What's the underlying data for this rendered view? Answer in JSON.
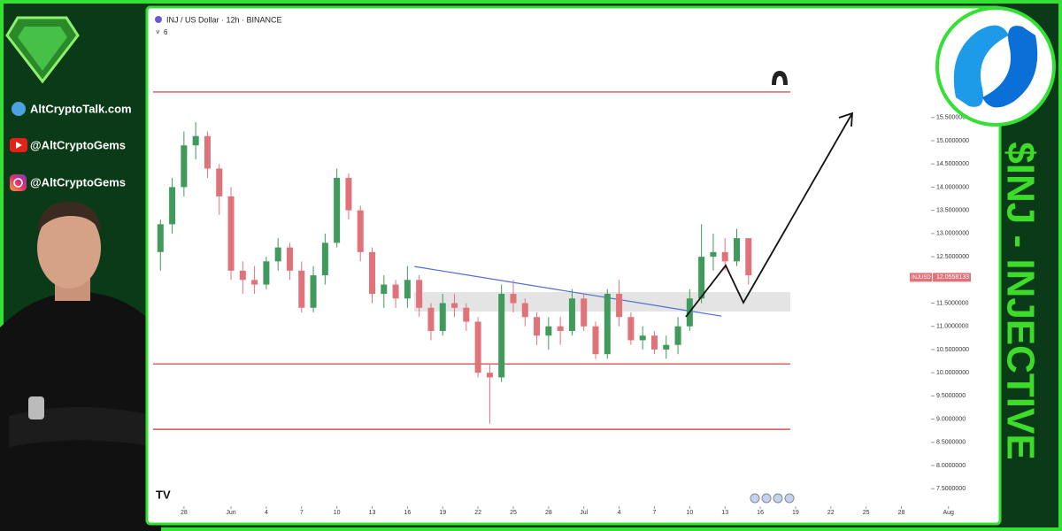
{
  "branding": {
    "website": "AltCryptoTalk.com",
    "youtube": "@AltCryptoGems",
    "instagram": "@AltCryptoGems",
    "headline": "$INJ - INJECTIVE"
  },
  "chart_data": {
    "type": "candlestick",
    "title": "INJ / US Dollar · 12h · BINANCE",
    "indicator_count": "6",
    "up_color": "#3f9a5c",
    "down_color": "#e0737a",
    "x": [
      -2,
      -1,
      0,
      1,
      2,
      3,
      4,
      5,
      6,
      7,
      8,
      9,
      10,
      11,
      12,
      13,
      14,
      15,
      16,
      17,
      18,
      19,
      20,
      21,
      22,
      23,
      24,
      25,
      26,
      27,
      28,
      29,
      30,
      31,
      32,
      33,
      34,
      35,
      36,
      37,
      38,
      39,
      40,
      41,
      42,
      43,
      44,
      45,
      46,
      47,
      48
    ],
    "open": [
      12.6,
      13.2,
      14.0,
      14.9,
      15.1,
      14.4,
      13.8,
      12.2,
      12.0,
      11.9,
      12.4,
      12.7,
      12.2,
      11.4,
      12.1,
      12.8,
      14.2,
      13.5,
      12.6,
      11.7,
      11.9,
      11.6,
      12.0,
      11.4,
      10.9,
      11.5,
      11.4,
      11.1,
      10.0,
      9.9,
      11.7,
      11.5,
      11.2,
      10.8,
      11.0,
      10.9,
      11.6,
      11.0,
      10.4,
      11.7,
      11.2,
      10.7,
      10.8,
      10.5,
      10.6,
      11.0,
      11.6,
      12.5,
      12.6,
      12.4,
      12.9
    ],
    "high": [
      13.3,
      14.2,
      15.2,
      15.4,
      15.2,
      14.5,
      14.0,
      12.4,
      12.3,
      12.5,
      12.9,
      12.8,
      12.4,
      12.3,
      13.0,
      14.4,
      14.3,
      13.6,
      12.7,
      12.1,
      12.0,
      12.3,
      12.1,
      11.5,
      11.7,
      11.7,
      11.5,
      11.2,
      10.2,
      11.9,
      12.0,
      11.6,
      11.3,
      11.2,
      11.2,
      11.8,
      11.7,
      11.1,
      11.8,
      12.0,
      11.3,
      11.0,
      10.9,
      10.8,
      11.2,
      11.8,
      13.2,
      13.0,
      12.9,
      13.1,
      12.9
    ],
    "low": [
      12.2,
      13.0,
      13.8,
      14.6,
      14.2,
      13.4,
      12.0,
      11.7,
      11.7,
      11.8,
      12.2,
      12.0,
      11.3,
      11.3,
      11.9,
      12.7,
      13.3,
      12.4,
      11.5,
      11.4,
      11.4,
      11.4,
      11.2,
      10.7,
      10.8,
      11.2,
      10.9,
      9.9,
      8.9,
      9.8,
      11.3,
      11.0,
      10.6,
      10.5,
      10.6,
      10.8,
      10.9,
      10.3,
      10.3,
      11.0,
      10.6,
      10.5,
      10.4,
      10.3,
      10.4,
      10.9,
      11.5,
      12.2,
      12.2,
      12.3,
      11.9
    ],
    "close": [
      13.2,
      14.0,
      14.9,
      15.1,
      14.4,
      13.8,
      12.2,
      12.0,
      11.9,
      12.4,
      12.7,
      12.2,
      11.4,
      12.1,
      12.8,
      14.2,
      13.5,
      12.6,
      11.7,
      11.9,
      11.6,
      12.0,
      11.4,
      10.9,
      11.5,
      11.4,
      11.1,
      10.0,
      9.9,
      11.7,
      11.5,
      11.2,
      10.8,
      11.0,
      10.9,
      11.6,
      11.0,
      10.4,
      11.7,
      11.2,
      10.7,
      10.8,
      10.5,
      10.6,
      11.0,
      11.6,
      12.5,
      12.6,
      12.4,
      12.9,
      12.1
    ],
    "xlim": [
      -3,
      66
    ],
    "xticks": [
      {
        "value": 0,
        "label": "28"
      },
      {
        "value": 4,
        "label": "Jun"
      },
      {
        "value": 7,
        "label": "4"
      },
      {
        "value": 10,
        "label": "7"
      },
      {
        "value": 13,
        "label": "10"
      },
      {
        "value": 16,
        "label": "13"
      },
      {
        "value": 19,
        "label": "16"
      },
      {
        "value": 22,
        "label": "19"
      },
      {
        "value": 25,
        "label": "22"
      },
      {
        "value": 28,
        "label": "25"
      },
      {
        "value": 31,
        "label": "28"
      },
      {
        "value": 34,
        "label": "Jul"
      },
      {
        "value": 37,
        "label": "4"
      },
      {
        "value": 40,
        "label": "7"
      },
      {
        "value": 43,
        "label": "10"
      },
      {
        "value": 46,
        "label": "13"
      },
      {
        "value": 49,
        "label": "16"
      },
      {
        "value": 52,
        "label": "19"
      },
      {
        "value": 55,
        "label": "22"
      },
      {
        "value": 58,
        "label": "25"
      },
      {
        "value": 61,
        "label": "28"
      },
      {
        "value": 65,
        "label": "Aug"
      }
    ],
    "ylim": [
      6.78,
      17.88
    ],
    "yticks": [
      {
        "value": 7.5,
        "label": "7.5000000"
      },
      {
        "value": 8,
        "label": "8.0000000"
      },
      {
        "value": 8.5,
        "label": "8.5000000"
      },
      {
        "value": 9,
        "label": "9.0000000"
      },
      {
        "value": 9.5,
        "label": "9.5000000"
      },
      {
        "value": 10,
        "label": "10.0000000"
      },
      {
        "value": 10.5,
        "label": "10.5000000"
      },
      {
        "value": 11,
        "label": "11.0000000"
      },
      {
        "value": 11.5,
        "label": "11.5000000"
      },
      {
        "value": 12,
        "label": "12.0000000"
      },
      {
        "value": 12.5,
        "label": "12.5000000"
      },
      {
        "value": 13,
        "label": "13.0000000"
      },
      {
        "value": 13.5,
        "label": "13.5000000"
      },
      {
        "value": 14,
        "label": "14.0000000"
      },
      {
        "value": 14.5,
        "label": "14.5000000"
      },
      {
        "value": 15,
        "label": "15.0000000"
      },
      {
        "value": 15.5,
        "label": "15.5000000"
      }
    ],
    "levels": [
      16.05,
      10.19,
      8.78
    ],
    "level_color": "#d32f2f",
    "zone": [
      11.32,
      11.74
    ],
    "trendline": {
      "x": [
        19.6,
        45.7
      ],
      "y": [
        12.29,
        11.22
      ],
      "color": "#4a6fd8"
    },
    "last_price": {
      "symbol": "INJUSD",
      "value": 12.0558133
    }
  }
}
